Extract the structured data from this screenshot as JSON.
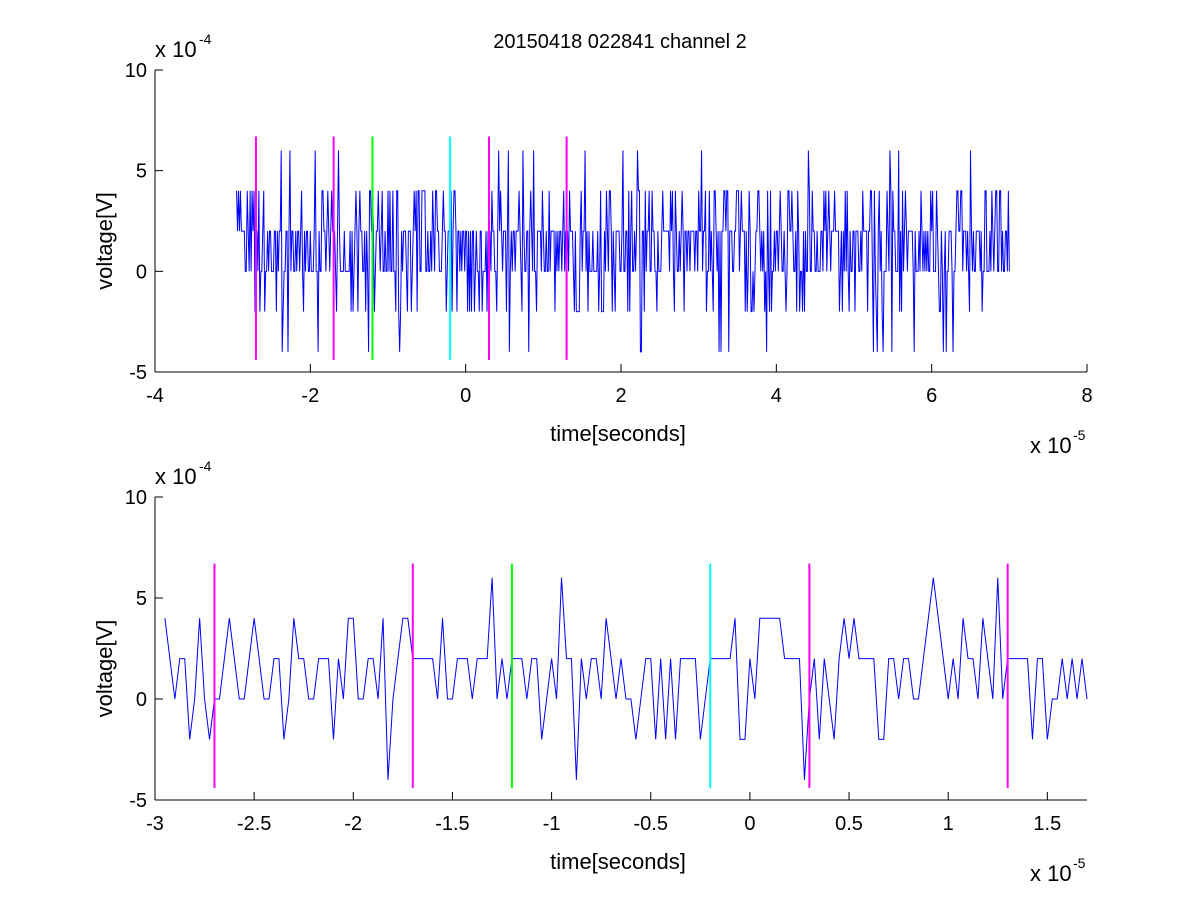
{
  "figure": {
    "title": "20150418 022841 channel 2"
  },
  "colors": {
    "signal": "#0000ff",
    "magenta": "#ff00ff",
    "green": "#00ff00",
    "cyan": "#00ffff"
  },
  "chart_data": [
    {
      "type": "line",
      "title": "20150418 022841 channel 2",
      "xlabel": "time[seconds]",
      "ylabel": "voltage[V]",
      "x_exponent": "x 10",
      "x_exponent_power": "-5",
      "y_exponent": "x 10",
      "y_exponent_power": "-4",
      "xlim": [
        -4,
        8
      ],
      "ylim": [
        -5,
        10
      ],
      "xticks": [
        -4,
        -2,
        0,
        2,
        4,
        6,
        8
      ],
      "xtick_labels": [
        "-4",
        "-2",
        "0",
        "2",
        "4",
        "6",
        "8"
      ],
      "yticks": [
        -5,
        0,
        5,
        10
      ],
      "ytick_labels": [
        "-5",
        "0",
        "5",
        "10"
      ],
      "grid": false,
      "signal_range": [
        -2.95,
        7.0
      ],
      "signal_levels": [
        -4,
        -2,
        0,
        2,
        4,
        6
      ],
      "markers": [
        {
          "x": -2.7,
          "color": "magenta",
          "ymin": -4.4,
          "ymax": 6.7
        },
        {
          "x": -1.7,
          "color": "magenta",
          "ymin": -4.4,
          "ymax": 6.7
        },
        {
          "x": -1.2,
          "color": "green",
          "ymin": -4.4,
          "ymax": 6.7
        },
        {
          "x": -0.2,
          "color": "cyan",
          "ymin": -4.4,
          "ymax": 6.7
        },
        {
          "x": 0.3,
          "color": "magenta",
          "ymin": -4.4,
          "ymax": 6.7
        },
        {
          "x": 1.3,
          "color": "magenta",
          "ymin": -4.4,
          "ymax": 6.7
        }
      ]
    },
    {
      "type": "line",
      "title": "",
      "xlabel": "time[seconds]",
      "ylabel": "voltage[V]",
      "x_exponent": "x 10",
      "x_exponent_power": "-5",
      "y_exponent": "x 10",
      "y_exponent_power": "-4",
      "xlim": [
        -3.0,
        1.7
      ],
      "ylim": [
        -5,
        10
      ],
      "xticks": [
        -3,
        -2.5,
        -2,
        -1.5,
        -1,
        -0.5,
        0,
        0.5,
        1,
        1.5
      ],
      "xtick_labels": [
        "-3",
        "-2.5",
        "-2",
        "-1.5",
        "-1",
        "-0.5",
        "0",
        "0.5",
        "1",
        "1.5"
      ],
      "yticks": [
        -5,
        0,
        5,
        10
      ],
      "ytick_labels": [
        "-5",
        "0",
        "5",
        "10"
      ],
      "grid": false,
      "signal_range": [
        -2.95,
        1.7
      ],
      "signal_levels": [
        -4,
        -2,
        0,
        2,
        4,
        6
      ],
      "markers": [
        {
          "x": -2.7,
          "color": "magenta",
          "ymin": -4.4,
          "ymax": 6.7
        },
        {
          "x": -1.7,
          "color": "magenta",
          "ymin": -4.4,
          "ymax": 6.7
        },
        {
          "x": -1.2,
          "color": "green",
          "ymin": -4.4,
          "ymax": 6.7
        },
        {
          "x": -0.2,
          "color": "cyan",
          "ymin": -4.4,
          "ymax": 6.7
        },
        {
          "x": 0.3,
          "color": "magenta",
          "ymin": -4.4,
          "ymax": 6.7
        },
        {
          "x": 1.3,
          "color": "magenta",
          "ymin": -4.4,
          "ymax": 6.7
        }
      ]
    }
  ]
}
